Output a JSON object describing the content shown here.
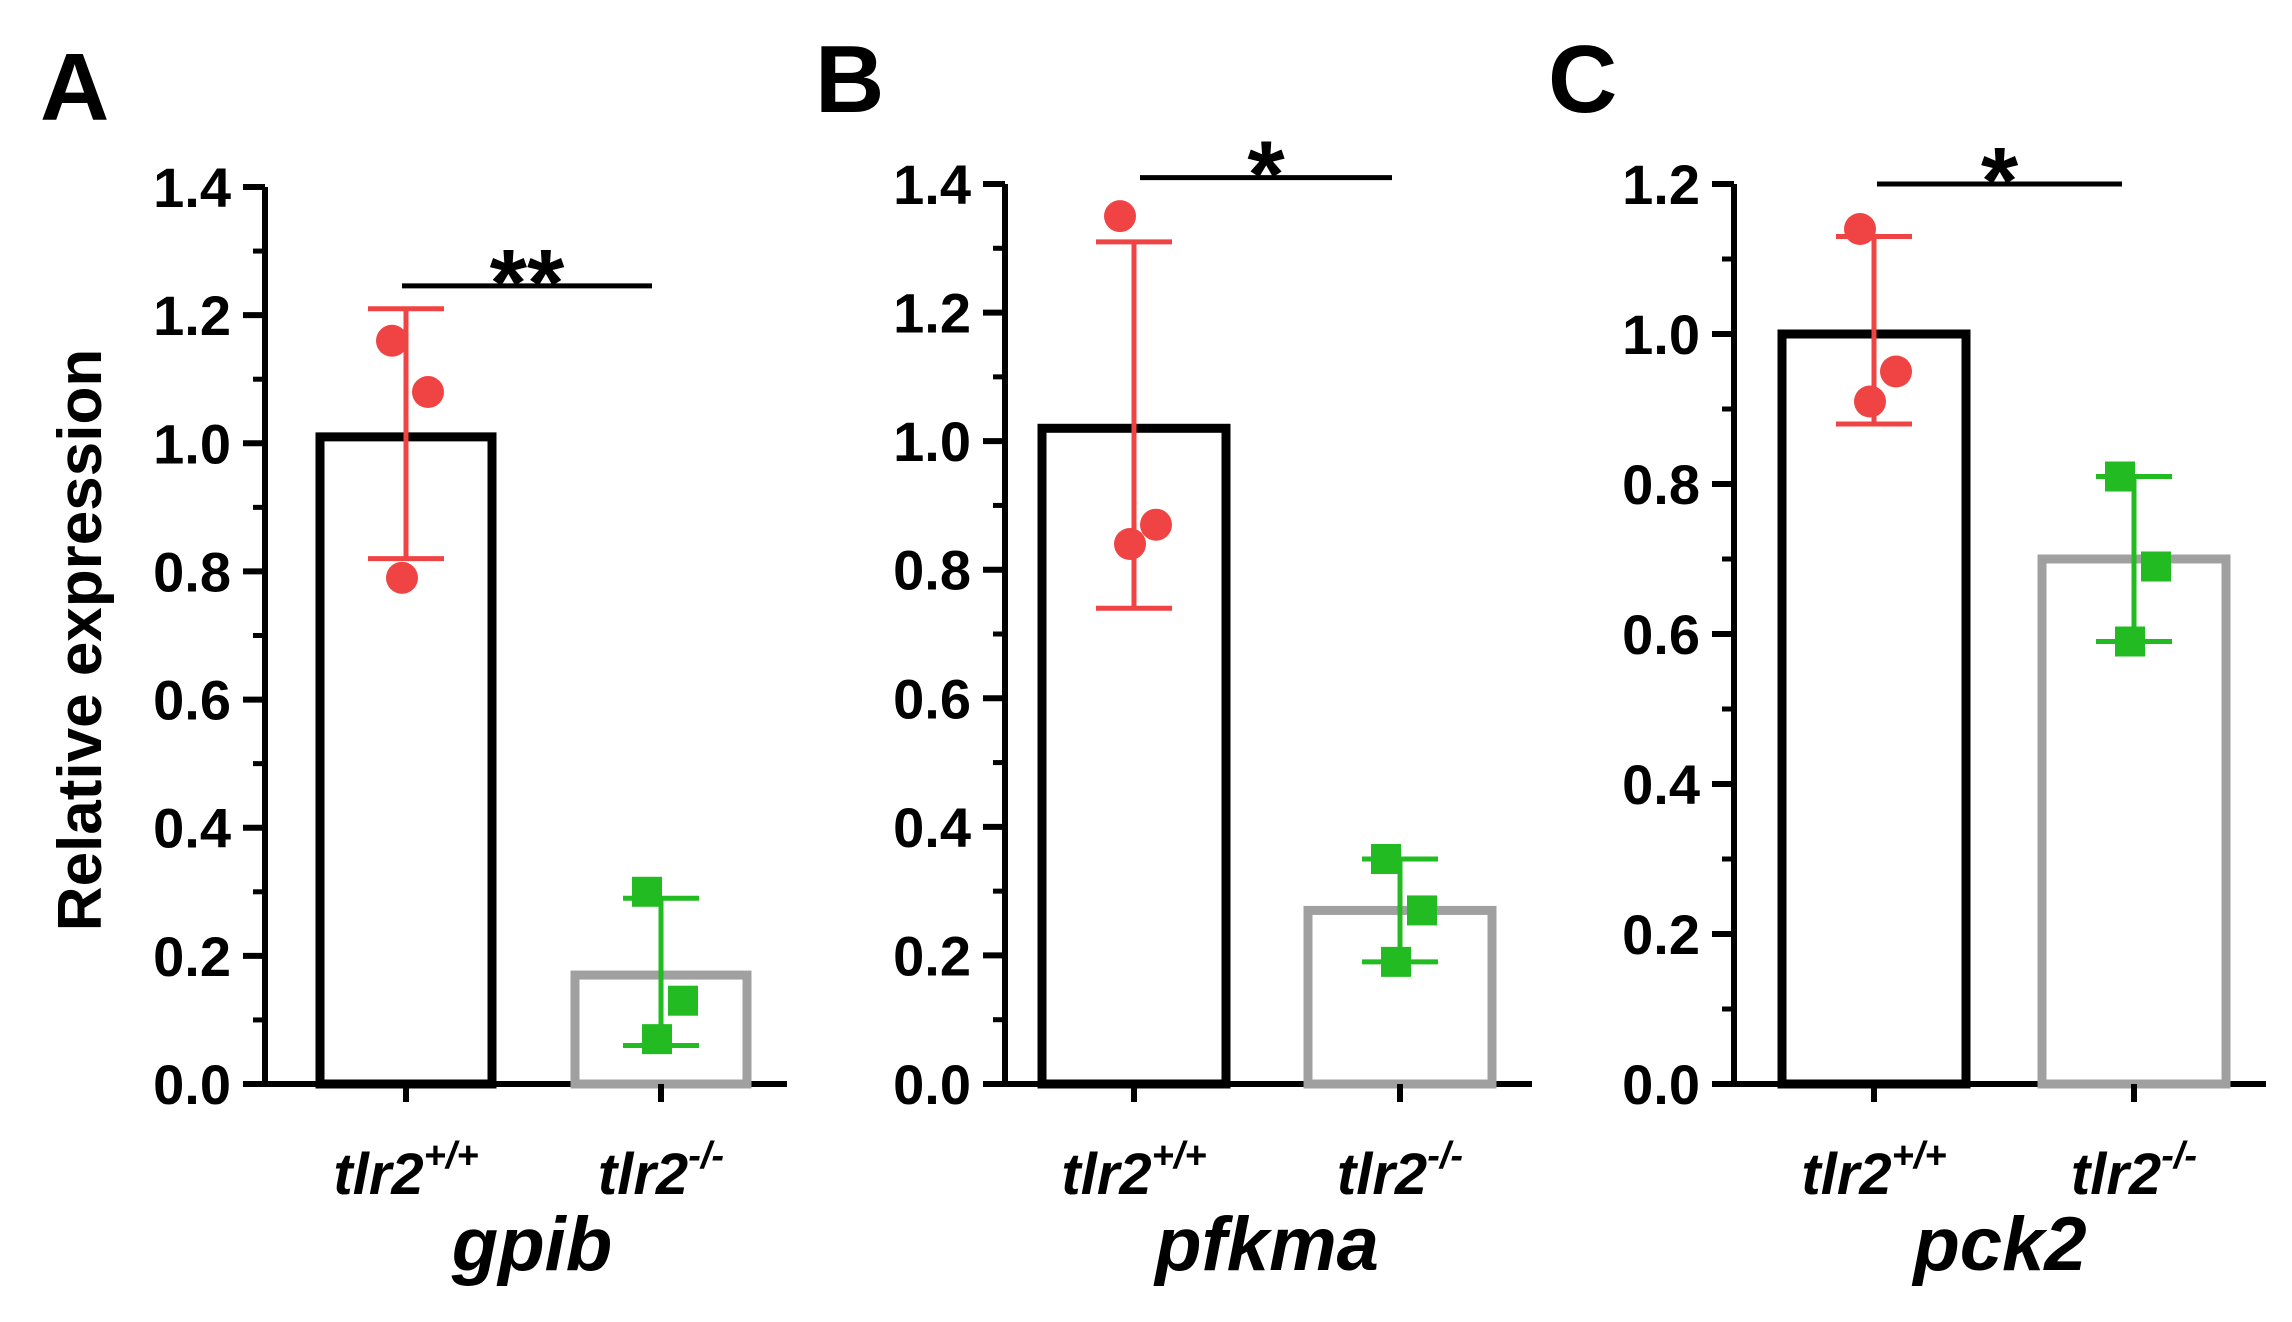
{
  "figure": {
    "ylabel": "Relative expression"
  },
  "chart_data": [
    {
      "panel": "A",
      "type": "bar",
      "gene": "gpib",
      "ylim": [
        0,
        1.4
      ],
      "tick_step": 0.2,
      "yticks": [
        "0.0",
        "0.2",
        "0.4",
        "0.6",
        "0.8",
        "1.0",
        "1.2",
        "1.4"
      ],
      "categories": [
        {
          "base": "tlr2",
          "sup": "+/+",
          "mean": 1.01,
          "sd_low": 0.82,
          "sd_high": 1.21,
          "points": [
            1.16,
            1.08,
            0.79
          ],
          "bar_color": "#000000",
          "point_color": "#f04444",
          "marker": "circle"
        },
        {
          "base": "tlr2",
          "sup": "-/-",
          "mean": 0.17,
          "sd_low": 0.06,
          "sd_high": 0.29,
          "points": [
            0.3,
            0.13,
            0.07
          ],
          "bar_color": "#a0a0a0",
          "point_color": "#22bb22",
          "marker": "square"
        }
      ],
      "significance": {
        "label": "**",
        "y": 1.28
      }
    },
    {
      "panel": "B",
      "type": "bar",
      "gene": "pfkma",
      "ylim": [
        0,
        1.4
      ],
      "tick_step": 0.2,
      "yticks": [
        "0.0",
        "0.2",
        "0.4",
        "0.6",
        "0.8",
        "1.0",
        "1.2",
        "1.4"
      ],
      "categories": [
        {
          "base": "tlr2",
          "sup": "+/+",
          "mean": 1.02,
          "sd_low": 0.74,
          "sd_high": 1.31,
          "points": [
            1.35,
            0.87,
            0.84
          ],
          "bar_color": "#000000",
          "point_color": "#f04444",
          "marker": "circle"
        },
        {
          "base": "tlr2",
          "sup": "-/-",
          "mean": 0.27,
          "sd_low": 0.19,
          "sd_high": 0.35,
          "points": [
            0.35,
            0.27,
            0.19
          ],
          "bar_color": "#a0a0a0",
          "point_color": "#22bb22",
          "marker": "square"
        }
      ],
      "significance": {
        "label": "*",
        "y": 1.41
      }
    },
    {
      "panel": "C",
      "type": "bar",
      "gene": "pck2",
      "ylim": [
        0,
        1.2
      ],
      "tick_step": 0.2,
      "yticks": [
        "0.0",
        "0.2",
        "0.4",
        "0.6",
        "0.8",
        "1.0",
        "1.2"
      ],
      "categories": [
        {
          "base": "tlr2",
          "sup": "+/+",
          "mean": 1.0,
          "sd_low": 0.88,
          "sd_high": 1.13,
          "points": [
            1.14,
            0.95,
            0.91
          ],
          "bar_color": "#000000",
          "point_color": "#f04444",
          "marker": "circle"
        },
        {
          "base": "tlr2",
          "sup": "-/-",
          "mean": 0.7,
          "sd_low": 0.59,
          "sd_high": 0.81,
          "points": [
            0.81,
            0.69,
            0.59
          ],
          "bar_color": "#a0a0a0",
          "point_color": "#22bb22",
          "marker": "square"
        }
      ],
      "significance": {
        "label": "*",
        "y": 1.2
      }
    }
  ]
}
